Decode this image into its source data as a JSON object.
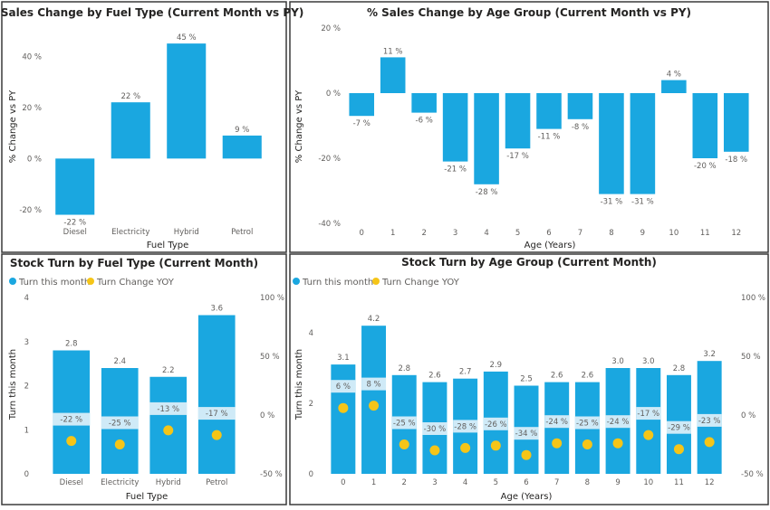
{
  "colors": {
    "bar": "#1aa7e0",
    "dot": "#f5c518",
    "label_box": "#cfeaf7",
    "axis_text": "#605e5c",
    "title": "#252423",
    "border": "#3a3a3a"
  },
  "panels": {
    "p1": {
      "title": "% Sales Change by Fuel Type (Current Month vs PY)",
      "xlabel": "Fuel Type",
      "ylabel": "% Change vs PY"
    },
    "p2": {
      "title": "% Sales Change by Age Group (Current Month vs PY)",
      "xlabel": "Age (Years)",
      "ylabel": "% Change vs PY"
    },
    "p3": {
      "title": "Stock Turn by Fuel Type (Current Month)",
      "xlabel": "Fuel Type",
      "ylabel": "Turn this month"
    },
    "p4": {
      "title": "Stock Turn by Age Group (Current Month)",
      "xlabel": "Age (Years)",
      "ylabel": "Turn this month"
    }
  },
  "legend": {
    "series1": "Turn this month",
    "series2": "Turn Change YOY"
  },
  "chart_data": [
    {
      "type": "bar",
      "title": "% Sales Change by Fuel Type (Current Month vs PY)",
      "xlabel": "Fuel Type",
      "ylabel": "% Change vs PY",
      "categories": [
        "Diesel",
        "Electricity",
        "Hybrid",
        "Petrol"
      ],
      "values": [
        -22,
        22,
        45,
        9
      ],
      "value_labels": [
        "-22 %",
        "22 %",
        "45 %",
        "9 %"
      ],
      "yticks": [
        -20,
        0,
        20,
        40
      ],
      "ytick_labels": [
        "-20 %",
        "0 %",
        "20 %",
        "40 %"
      ],
      "ylim": [
        -25,
        50
      ],
      "grid": false
    },
    {
      "type": "bar",
      "title": "% Sales Change by Age Group (Current Month vs PY)",
      "xlabel": "Age (Years)",
      "ylabel": "% Change vs PY",
      "categories": [
        "0",
        "1",
        "2",
        "3",
        "4",
        "5",
        "6",
        "7",
        "8",
        "9",
        "10",
        "11",
        "12"
      ],
      "values": [
        -7,
        11,
        -6,
        -21,
        -28,
        -17,
        -11,
        -8,
        -31,
        -31,
        4,
        -20,
        -18
      ],
      "value_labels": [
        "-7 %",
        "11 %",
        "-6 %",
        "-21 %",
        "-28 %",
        "-17 %",
        "-11 %",
        "-8 %",
        "-31 %",
        "-31 %",
        "4 %",
        "-20 %",
        "-18 %"
      ],
      "yticks": [
        -40,
        -20,
        0,
        20
      ],
      "ytick_labels": [
        "-40 %",
        "-20 %",
        "0 %",
        "20 %"
      ],
      "ylim": [
        -40,
        20
      ],
      "grid": false
    },
    {
      "type": "bar",
      "title": "Stock Turn by Fuel Type (Current Month)",
      "xlabel": "Fuel Type",
      "ylabel": "Turn this month",
      "categories": [
        "Diesel",
        "Electricity",
        "Hybrid",
        "Petrol"
      ],
      "series": [
        {
          "name": "Turn this month",
          "axis": "left",
          "values": [
            2.8,
            2.4,
            2.2,
            3.6
          ],
          "value_labels": [
            "2.8",
            "2.4",
            "2.2",
            "3.6"
          ]
        },
        {
          "name": "Turn Change YOY",
          "axis": "right",
          "marker": "dot",
          "values": [
            -22,
            -25,
            -13,
            -17
          ],
          "value_labels": [
            "-22 %",
            "-25 %",
            "-13 %",
            "-17 %"
          ]
        }
      ],
      "yticks_left": [
        0,
        1,
        2,
        3,
        4
      ],
      "ytick_labels_left": [
        "0",
        "1",
        "2",
        "3",
        "4"
      ],
      "ylim_left": [
        0,
        4
      ],
      "yticks_right": [
        -50,
        0,
        50,
        100
      ],
      "ytick_labels_right": [
        "-50 %",
        "0 %",
        "50 %",
        "100 %"
      ],
      "ylim_right": [
        -50,
        100
      ],
      "legend": "top-left",
      "grid": false
    },
    {
      "type": "bar",
      "title": "Stock Turn by Age Group (Current Month)",
      "xlabel": "Age (Years)",
      "ylabel": "Turn this month",
      "categories": [
        "0",
        "1",
        "2",
        "3",
        "4",
        "5",
        "6",
        "7",
        "8",
        "9",
        "10",
        "11",
        "12"
      ],
      "series": [
        {
          "name": "Turn this month",
          "axis": "left",
          "values": [
            3.1,
            4.2,
            2.8,
            2.6,
            2.7,
            2.9,
            2.5,
            2.6,
            2.6,
            3.0,
            3.0,
            2.8,
            3.2
          ],
          "value_labels": [
            "3.1",
            "4.2",
            "2.8",
            "2.6",
            "2.7",
            "2.9",
            "2.5",
            "2.6",
            "2.6",
            "3.0",
            "3.0",
            "2.8",
            "3.2"
          ]
        },
        {
          "name": "Turn Change YOY",
          "axis": "right",
          "marker": "dot",
          "values": [
            6,
            8,
            -25,
            -30,
            -28,
            -26,
            -34,
            -24,
            -25,
            -24,
            -17,
            -29,
            -23
          ],
          "value_labels": [
            "6 %",
            "8 %",
            "-25 %",
            "-30 %",
            "-28 %",
            "-26 %",
            "-34 %",
            "-24 %",
            "-25 %",
            "-24 %",
            "-17 %",
            "-29 %",
            "-23 %"
          ]
        }
      ],
      "yticks_left": [
        0,
        2,
        4
      ],
      "ytick_labels_left": [
        "0",
        "2",
        "4"
      ],
      "ylim_left": [
        0,
        5
      ],
      "yticks_right": [
        -50,
        0,
        50,
        100
      ],
      "ytick_labels_right": [
        "-50 %",
        "0 %",
        "50 %",
        "100 %"
      ],
      "ylim_right": [
        -50,
        100
      ],
      "legend": "top-left",
      "grid": false
    }
  ]
}
